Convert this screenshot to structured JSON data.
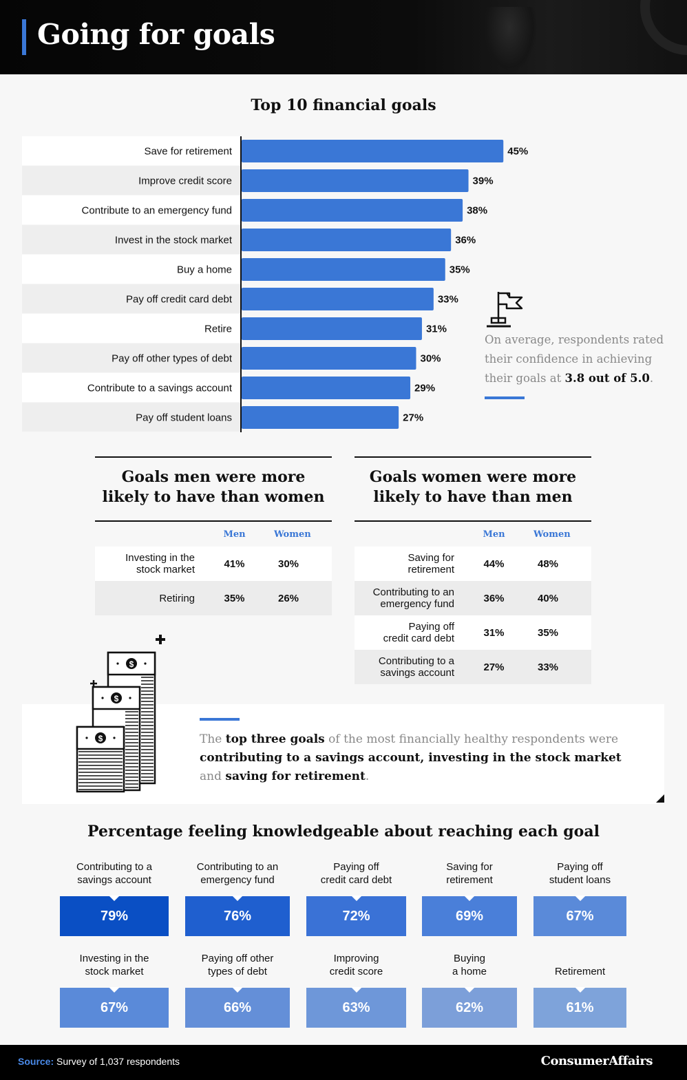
{
  "header": {
    "title": "Going for goals"
  },
  "chart_data": [
    {
      "type": "bar",
      "orientation": "horizontal",
      "title": "Top 10 financial goals",
      "categories": [
        "Save for retirement",
        "Improve credit score",
        "Contribute to an emergency fund",
        "Invest in the stock market",
        "Buy a home",
        "Pay off credit card debt",
        "Retire",
        "Pay off other types of debt",
        "Contribute to a savings account",
        "Pay off student loans"
      ],
      "values": [
        45,
        39,
        38,
        36,
        35,
        33,
        31,
        30,
        29,
        27
      ],
      "value_labels": [
        "45%",
        "39%",
        "38%",
        "36%",
        "35%",
        "33%",
        "31%",
        "30%",
        "29%",
        "27%"
      ],
      "unit": "%",
      "color": "#3a77d6"
    },
    {
      "type": "table",
      "title": "Goals men were more likely to have than women",
      "columns": [
        "",
        "Men",
        "Women"
      ],
      "rows": [
        [
          "Investing in the stock market",
          "41%",
          "30%"
        ],
        [
          "Retiring",
          "35%",
          "26%"
        ]
      ]
    },
    {
      "type": "table",
      "title": "Goals women were more likely to have than men",
      "columns": [
        "",
        "Men",
        "Women"
      ],
      "rows": [
        [
          "Saving for retirement",
          "44%",
          "48%"
        ],
        [
          "Contributing to an emergency fund",
          "36%",
          "40%"
        ],
        [
          "Paying off credit card debt",
          "31%",
          "35%"
        ],
        [
          "Contributing to a savings account",
          "27%",
          "33%"
        ]
      ]
    },
    {
      "type": "bar",
      "title": "Percentage feeling knowledgeable about reaching each goal",
      "categories": [
        "Contributing to a savings account",
        "Contributing to an emergency fund",
        "Paying off credit card debt",
        "Saving for retirement",
        "Paying off student loans",
        "Investing in the stock market",
        "Paying off other types of debt",
        "Improving credit score",
        "Buying a home",
        "Retirement"
      ],
      "values": [
        79,
        76,
        72,
        69,
        67,
        67,
        66,
        63,
        62,
        61
      ],
      "value_labels": [
        "79%",
        "76%",
        "72%",
        "69%",
        "67%",
        "67%",
        "66%",
        "63%",
        "62%",
        "61%"
      ],
      "unit": "%",
      "colors": [
        "#0a4fc4",
        "#1f5fcf",
        "#3a72d6",
        "#4a7fd9",
        "#5a8ad9",
        "#5a8ad9",
        "#648fd8",
        "#6e97d9",
        "#7c9fd9",
        "#7ea3da"
      ]
    }
  ],
  "confidence": {
    "text_pre": "On average, respondents rated their confidence in achieving their goals at ",
    "value": "3.8 out of 5.0",
    "text_post": ".",
    "icon": "flag-icon"
  },
  "men_table": {
    "title_line1": "Goals men were more",
    "title_line2": "likely to have than women",
    "col_men": "Men",
    "col_women": "Women",
    "rows": [
      {
        "line1": "Investing in the",
        "line2": "stock market",
        "men": "41%",
        "women": "30%"
      },
      {
        "line1": "Retiring",
        "line2": "",
        "men": "35%",
        "women": "26%"
      }
    ]
  },
  "women_table": {
    "title_line1": "Goals women were more",
    "title_line2": "likely to have than men",
    "col_men": "Men",
    "col_women": "Women",
    "rows": [
      {
        "line1": "Saving for",
        "line2": "retirement",
        "men": "44%",
        "women": "48%"
      },
      {
        "line1": "Contributing to an",
        "line2": "emergency fund",
        "men": "36%",
        "women": "40%"
      },
      {
        "line1": "Paying off",
        "line2": "credit card debt",
        "men": "31%",
        "women": "35%"
      },
      {
        "line1": "Contributing to a",
        "line2": "savings account",
        "men": "27%",
        "women": "33%"
      }
    ]
  },
  "healthy_note": {
    "t1": "The ",
    "b1": "top three goals",
    "t2": " of the most financially healthy respondents were ",
    "b2": "contributing to a savings account, investing in the stock market",
    "t3": " and ",
    "b3": "saving for retirement",
    "t4": ".",
    "icon": "money-stack-icon"
  },
  "knowledge": {
    "title": "Percentage feeling knowledgeable about reaching each goal",
    "items": [
      {
        "line1": "Contributing to a",
        "line2": "savings account"
      },
      {
        "line1": "Contributing to an",
        "line2": "emergency fund"
      },
      {
        "line1": "Paying off",
        "line2": "credit card debt"
      },
      {
        "line1": "Saving for",
        "line2": "retirement"
      },
      {
        "line1": "Paying off",
        "line2": "student loans"
      },
      {
        "line1": "Investing in the",
        "line2": "stock market"
      },
      {
        "line1": "Paying off other",
        "line2": "types of debt"
      },
      {
        "line1": "Improving",
        "line2": "credit score"
      },
      {
        "line1": "Buying",
        "line2": "a home"
      },
      {
        "line1": "",
        "line2": "Retirement"
      }
    ]
  },
  "footer": {
    "source_label": "Source:",
    "source_text": " Survey of 1,037 respondents",
    "brand": "ConsumerAffairs"
  }
}
